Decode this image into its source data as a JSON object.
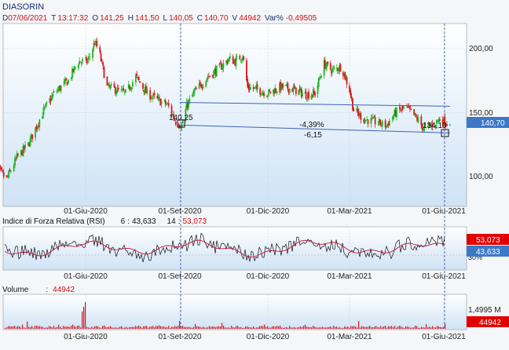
{
  "symbol": "DIASORIN",
  "quote": {
    "date_label": "D",
    "date": "07/06/2021",
    "time_label": "T",
    "time": "13:17:32",
    "open_label": "O",
    "open": "141,25",
    "high_label": "H",
    "high": "141,50",
    "low_label": "L",
    "low": "140,05",
    "close_label": "C",
    "close": "140,70",
    "volume_label": "V",
    "volume": "44942",
    "var_label": "Var%",
    "var": "-0,49505"
  },
  "price_axis": {
    "ticks": [
      "200,00",
      "150,00",
      "100,00"
    ],
    "last_value": "140,70"
  },
  "date_ticks": [
    "01-Giu-2020",
    "01-Set-2020",
    "01-Dic-2020",
    "01-Mar-2021",
    "01-Giu-2021"
  ],
  "annotations": {
    "start_value": "140,25",
    "end_value": "134,10",
    "pct_change": "-4,39%",
    "abs_change": "-6,15"
  },
  "rsi": {
    "title": "Indice di Forza Relativa (RSI)",
    "p1": "6",
    "v1": "43,633",
    "p2": "14",
    "v2": "53,073",
    "badge_top": "53,073",
    "badge_bottom": "43,633",
    "level": "30%"
  },
  "volume_panel": {
    "title": "Volume",
    "value": "44942",
    "axis_label": "1,4995 M",
    "badge": "44942"
  },
  "colors": {
    "up": "#23b323",
    "down": "#d81818",
    "trend": "#3c64b4",
    "panel_bg": "#d6e8f6",
    "badge_red": "#e00000",
    "badge_blue": "#3c78c8"
  },
  "chart_data": {
    "type": "candlestick",
    "ylim": [
      85,
      220
    ],
    "x_ticks": [
      "01-Giu-2020",
      "01-Set-2020",
      "01-Dic-2020",
      "01-Mar-2021",
      "01-Giu-2021"
    ],
    "close_path": [
      {
        "d": "2020-03-02",
        "v": 110
      },
      {
        "d": "2020-03-10",
        "v": 103
      },
      {
        "d": "2020-03-16",
        "v": 98
      },
      {
        "d": "2020-03-26",
        "v": 115
      },
      {
        "d": "2020-04-06",
        "v": 125
      },
      {
        "d": "2020-04-20",
        "v": 150
      },
      {
        "d": "2020-05-01",
        "v": 165
      },
      {
        "d": "2020-05-15",
        "v": 175
      },
      {
        "d": "2020-05-25",
        "v": 190
      },
      {
        "d": "2020-06-03",
        "v": 190
      },
      {
        "d": "2020-06-10",
        "v": 205
      },
      {
        "d": "2020-06-14",
        "v": 198
      },
      {
        "d": "2020-06-22",
        "v": 170
      },
      {
        "d": "2020-06-30",
        "v": 168
      },
      {
        "d": "2020-07-10",
        "v": 165
      },
      {
        "d": "2020-07-20",
        "v": 178
      },
      {
        "d": "2020-07-31",
        "v": 165
      },
      {
        "d": "2020-08-10",
        "v": 160
      },
      {
        "d": "2020-08-20",
        "v": 156
      },
      {
        "d": "2020-08-28",
        "v": 143
      },
      {
        "d": "2020-09-03",
        "v": 140
      },
      {
        "d": "2020-09-08",
        "v": 155
      },
      {
        "d": "2020-09-15",
        "v": 165
      },
      {
        "d": "2020-09-30",
        "v": 178
      },
      {
        "d": "2020-10-12",
        "v": 185
      },
      {
        "d": "2020-10-22",
        "v": 192
      },
      {
        "d": "2020-10-28",
        "v": 190
      },
      {
        "d": "2020-11-05",
        "v": 195
      },
      {
        "d": "2020-11-10",
        "v": 170
      },
      {
        "d": "2020-11-20",
        "v": 168
      },
      {
        "d": "2020-12-01",
        "v": 165
      },
      {
        "d": "2020-12-15",
        "v": 170
      },
      {
        "d": "2020-12-30",
        "v": 168
      },
      {
        "d": "2021-01-12",
        "v": 164
      },
      {
        "d": "2021-01-22",
        "v": 165
      },
      {
        "d": "2021-02-01",
        "v": 188
      },
      {
        "d": "2021-02-10",
        "v": 183
      },
      {
        "d": "2021-02-20",
        "v": 186
      },
      {
        "d": "2021-03-01",
        "v": 168
      },
      {
        "d": "2021-03-05",
        "v": 152
      },
      {
        "d": "2021-03-15",
        "v": 145
      },
      {
        "d": "2021-03-25",
        "v": 143
      },
      {
        "d": "2021-04-06",
        "v": 140
      },
      {
        "d": "2021-04-15",
        "v": 150
      },
      {
        "d": "2021-04-25",
        "v": 154
      },
      {
        "d": "2021-05-05",
        "v": 146
      },
      {
        "d": "2021-05-12",
        "v": 138
      },
      {
        "d": "2021-05-20",
        "v": 140
      },
      {
        "d": "2021-05-28",
        "v": 145
      },
      {
        "d": "2021-06-07",
        "v": 140.7
      }
    ],
    "trend_lines": [
      {
        "from": [
          "2020-09-01",
          158
        ],
        "to": [
          "2021-06-07",
          155
        ]
      },
      {
        "from": [
          "2020-09-01",
          140.25
        ],
        "to": [
          "2021-06-07",
          134.1
        ]
      }
    ],
    "last_close": 140.7
  }
}
